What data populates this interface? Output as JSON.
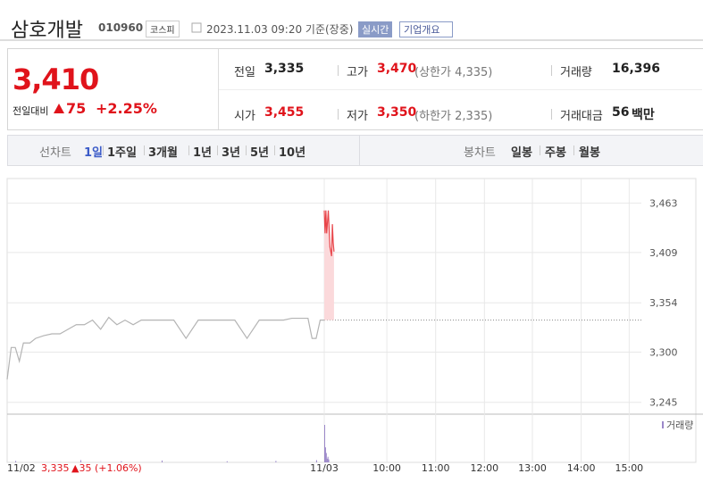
{
  "header": {
    "name": "삼호개발",
    "code": "010960",
    "market": "코스피",
    "timestamp": "2023.11.03 09:20 기준(장중)",
    "realtime": "실시간",
    "company": "기업개요"
  },
  "quote": {
    "price": "3,410",
    "change_label": "전일대비",
    "change": "75",
    "change_percent": "+2.25%"
  },
  "stats": [
    {
      "label": "전일",
      "value": "3,335"
    },
    {
      "label": "고가",
      "value": "3,470",
      "note": "(상한가 4,335)"
    },
    {
      "label": "거래량",
      "value": "16,396"
    },
    {
      "label": "시가",
      "value": "3,455"
    },
    {
      "label": "저가",
      "value": "3,350",
      "note": "(하한가 2,335)"
    },
    {
      "label": "거래대금",
      "value": "56",
      "unit": "백만"
    }
  ],
  "tabs": {
    "line_label": "선차트",
    "line": [
      "1일",
      "1주일",
      "3개월",
      "1년",
      "3년",
      "5년",
      "10년"
    ],
    "candle_label": "봉차트",
    "candle": [
      "일봉",
      "주봉",
      "월봉"
    ]
  },
  "chart_data": {
    "type": "line",
    "xlim": [
      -390,
      390
    ],
    "xticks": [
      {
        "value": 0,
        "label": "11/03"
      },
      {
        "value": 77,
        "label": "10:00"
      },
      {
        "value": 137,
        "label": "11:00"
      },
      {
        "value": 197,
        "label": "12:00"
      },
      {
        "value": 256,
        "label": "13:00"
      },
      {
        "value": 316,
        "label": "14:00"
      },
      {
        "value": 375,
        "label": "15:00"
      }
    ],
    "ylim": [
      3234,
      3490
    ],
    "yticks": [
      {
        "value": 3245,
        "label": "3,245"
      },
      {
        "value": 3300,
        "label": "3,300"
      },
      {
        "value": 3354,
        "label": "3,354"
      },
      {
        "value": 3409,
        "label": "3,409"
      },
      {
        "value": 3463,
        "label": "3,463"
      }
    ],
    "grid": true,
    "prev_close": 3335,
    "series": [
      {
        "color": "#b4b4b4",
        "x": [
          -390,
          -385,
          -380,
          -375,
          -370,
          -362,
          -355,
          -345,
          -335,
          -325,
          -315,
          -305,
          -295,
          -285,
          -275,
          -265,
          -255,
          -245,
          -235,
          -225,
          -215,
          -200,
          -185,
          -170,
          -155,
          -140,
          -125,
          -110,
          -95,
          -80,
          -65,
          -50,
          -40,
          -30,
          -20,
          -15,
          -10,
          -5,
          0
        ],
        "values": [
          3270,
          3305,
          3305,
          3290,
          3310,
          3310,
          3315,
          3318,
          3320,
          3320,
          3325,
          3330,
          3330,
          3335,
          3325,
          3338,
          3330,
          3335,
          3330,
          3335,
          3335,
          3335,
          3335,
          3315,
          3335,
          3335,
          3335,
          3335,
          3315,
          3335,
          3335,
          3335,
          3337,
          3337,
          3337,
          3315,
          3315,
          3335,
          3335
        ]
      },
      {
        "color": "#e8454a",
        "fill": "#fbd9db",
        "x": [
          0,
          1,
          2,
          3,
          5,
          7,
          9,
          10,
          11,
          12
        ],
        "values": [
          3455,
          3430,
          3455,
          3430,
          3455,
          3415,
          3405,
          3440,
          3420,
          3410
        ]
      }
    ],
    "volume": {
      "name": "거래량",
      "color": "#9b87c9",
      "vlim": [
        0,
        100
      ],
      "x": [
        -380,
        -300,
        -250,
        -200,
        -120,
        -60,
        -10,
        0,
        1,
        2,
        3,
        4,
        5
      ],
      "values": [
        4,
        6,
        3,
        5,
        3,
        4,
        6,
        100,
        40,
        25,
        10,
        15,
        8
      ]
    },
    "footer": {
      "date": "11/02",
      "close": "3,335",
      "change": "▲35 (+1.06%)"
    }
  }
}
